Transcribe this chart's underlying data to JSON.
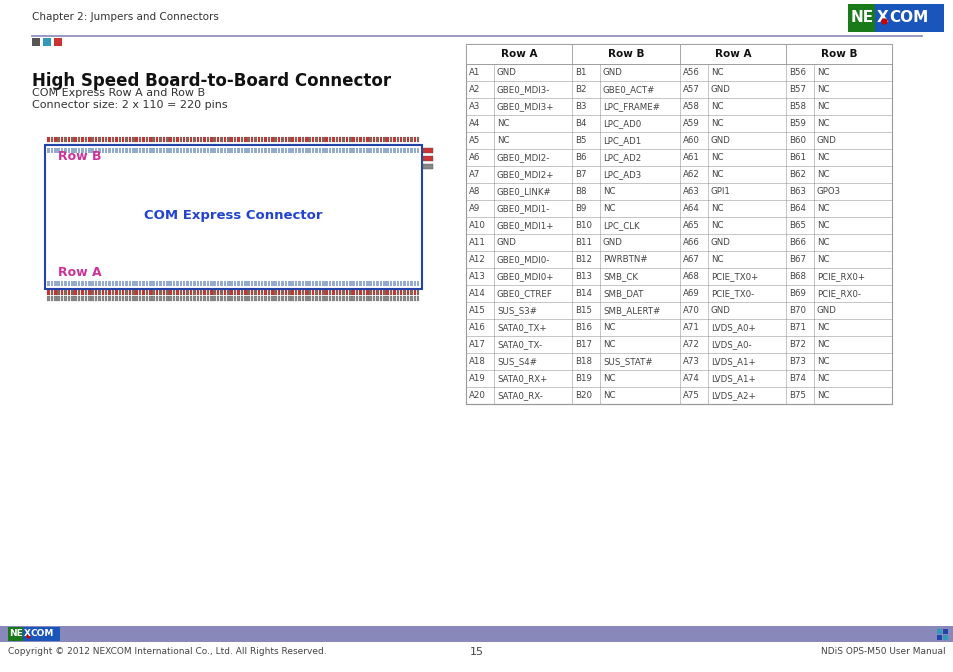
{
  "page_header": "Chapter 2: Jumpers and Connectors",
  "title": "High Speed Board-to-Board Connector",
  "subtitle1": "COM Express Row A and Row B",
  "subtitle2": "Connector size: 2 x 110 = 220 pins",
  "connector_label": "COM Express Connector",
  "row_b_label": "Row B",
  "row_a_label": "Row A",
  "footer_left": "Copyright © 2012 NEXCOM International Co., Ltd. All Rights Reserved.",
  "footer_center": "15",
  "footer_right": "NDiS OPS-M50 User Manual",
  "table_headers": [
    "Row A",
    "Row B",
    "Row A",
    "Row B"
  ],
  "table_data": [
    [
      "A1",
      "GND",
      "B1",
      "GND",
      "A56",
      "NC",
      "B56",
      "NC"
    ],
    [
      "A2",
      "GBE0_MDI3-",
      "B2",
      "GBE0_ACT#",
      "A57",
      "GND",
      "B57",
      "NC"
    ],
    [
      "A3",
      "GBE0_MDI3+",
      "B3",
      "LPC_FRAME#",
      "A58",
      "NC",
      "B58",
      "NC"
    ],
    [
      "A4",
      "NC",
      "B4",
      "LPC_AD0",
      "A59",
      "NC",
      "B59",
      "NC"
    ],
    [
      "A5",
      "NC",
      "B5",
      "LPC_AD1",
      "A60",
      "GND",
      "B60",
      "GND"
    ],
    [
      "A6",
      "GBE0_MDI2-",
      "B6",
      "LPC_AD2",
      "A61",
      "NC",
      "B61",
      "NC"
    ],
    [
      "A7",
      "GBE0_MDI2+",
      "B7",
      "LPC_AD3",
      "A62",
      "NC",
      "B62",
      "NC"
    ],
    [
      "A8",
      "GBE0_LINK#",
      "B8",
      "NC",
      "A63",
      "GPI1",
      "B63",
      "GPO3"
    ],
    [
      "A9",
      "GBE0_MDI1-",
      "B9",
      "NC",
      "A64",
      "NC",
      "B64",
      "NC"
    ],
    [
      "A10",
      "GBE0_MDI1+",
      "B10",
      "LPC_CLK",
      "A65",
      "NC",
      "B65",
      "NC"
    ],
    [
      "A11",
      "GND",
      "B11",
      "GND",
      "A66",
      "GND",
      "B66",
      "NC"
    ],
    [
      "A12",
      "GBE0_MDI0-",
      "B12",
      "PWRBTN#",
      "A67",
      "NC",
      "B67",
      "NC"
    ],
    [
      "A13",
      "GBE0_MDI0+",
      "B13",
      "SMB_CK",
      "A68",
      "PCIE_TX0+",
      "B68",
      "PCIE_RX0+"
    ],
    [
      "A14",
      "GBE0_CTREF",
      "B14",
      "SMB_DAT",
      "A69",
      "PCIE_TX0-",
      "B69",
      "PCIE_RX0-"
    ],
    [
      "A15",
      "SUS_S3#",
      "B15",
      "SMB_ALERT#",
      "A70",
      "GND",
      "B70",
      "GND"
    ],
    [
      "A16",
      "SATA0_TX+",
      "B16",
      "NC",
      "A71",
      "LVDS_A0+",
      "B71",
      "NC"
    ],
    [
      "A17",
      "SATA0_TX-",
      "B17",
      "NC",
      "A72",
      "LVDS_A0-",
      "B72",
      "NC"
    ],
    [
      "A18",
      "SUS_S4#",
      "B18",
      "SUS_STAT#",
      "A73",
      "LVDS_A1+",
      "B73",
      "NC"
    ],
    [
      "A19",
      "SATA0_RX+",
      "B19",
      "NC",
      "A74",
      "LVDS_A1+",
      "B74",
      "NC"
    ],
    [
      "A20",
      "SATA0_RX-",
      "B20",
      "NC",
      "A75",
      "LVDS_A2+",
      "B75",
      "NC"
    ]
  ],
  "bg_color": "#ffffff",
  "header_sq_colors": [
    "#555555",
    "#3399bb",
    "#cc3333"
  ],
  "table_border_color": "#999999",
  "nexcom_green": "#1a7a1a",
  "nexcom_blue": "#1a55bb",
  "nexcom_red": "#cc0000",
  "footer_bar_color": "#8888bb"
}
